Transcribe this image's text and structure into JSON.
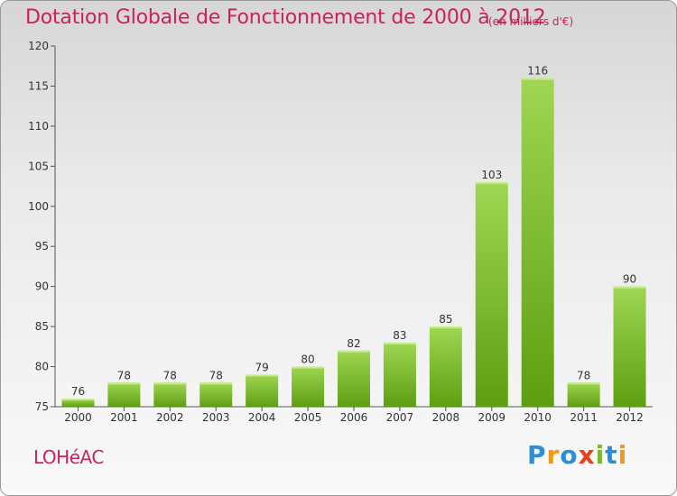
{
  "title": "Dotation Globale de Fonctionnement de 2000 à 2012",
  "subtitle": "(en milliers d'€)",
  "commune": "LOHéAC",
  "logo": {
    "text": "Proxiti",
    "letters": [
      "P",
      "r",
      "o",
      "x",
      "i",
      "t",
      "i"
    ],
    "colors": [
      "#2a8fd6",
      "#f09a1a",
      "#2a8fd6",
      "#e8401c",
      "#7cb82a",
      "#2a8fd6",
      "#f09a1a"
    ]
  },
  "colors": {
    "title": "#cc2255",
    "bar_light": "#9fd653",
    "bar_dark": "#5e9e12"
  },
  "chart_data": {
    "type": "bar",
    "title": "Dotation Globale de Fonctionnement de 2000 à 2012",
    "subtitle": "(en milliers d'€)",
    "categories": [
      "2000",
      "2001",
      "2002",
      "2003",
      "2004",
      "2005",
      "2006",
      "2007",
      "2008",
      "2009",
      "2010",
      "2011",
      "2012"
    ],
    "values": [
      76,
      78,
      78,
      78,
      79,
      80,
      82,
      83,
      85,
      103,
      116,
      78,
      90
    ],
    "ylim": [
      75,
      120
    ],
    "yticks": [
      75,
      80,
      85,
      90,
      95,
      100,
      105,
      110,
      115,
      120
    ],
    "xlabel": "",
    "ylabel": "",
    "grid": false,
    "data_labels": true
  }
}
